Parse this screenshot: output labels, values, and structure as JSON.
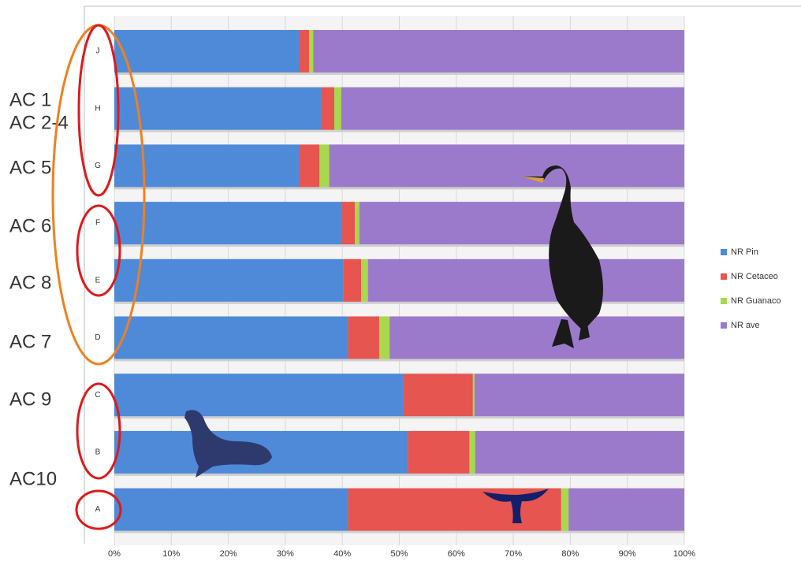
{
  "chart_data": {
    "type": "stacked_barh",
    "categories": [
      "J",
      "H",
      "G",
      "F",
      "E",
      "D",
      "C",
      "B",
      "A"
    ],
    "series": [
      {
        "name": "NR Pin",
        "color": "#4f8ad8",
        "values": [
          32.5,
          36.3,
          32.5,
          39.9,
          40.2,
          41.0,
          50.7,
          51.5,
          41.0
        ]
      },
      {
        "name": "NR Cetaceo",
        "color": "#e65550",
        "values": [
          1.7,
          2.3,
          3.5,
          2.3,
          3.1,
          5.5,
          12.2,
          10.8,
          37.4
        ]
      },
      {
        "name": "NR Guanaco",
        "color": "#a8d84c",
        "values": [
          0.7,
          1.2,
          1.7,
          0.8,
          1.2,
          1.8,
          0.3,
          1.0,
          1.3
        ]
      },
      {
        "name": "NR ave",
        "color": "#9c7acb",
        "values": [
          65.1,
          60.2,
          62.3,
          57.0,
          55.5,
          51.7,
          36.8,
          36.7,
          20.3
        ]
      }
    ],
    "xlim": [
      0,
      100
    ],
    "xticks": [
      {
        "value": 0,
        "label": "0%"
      },
      {
        "value": 10,
        "label": "10%"
      },
      {
        "value": 20,
        "label": "20%"
      },
      {
        "value": 30,
        "label": "30%"
      },
      {
        "value": 40,
        "label": "40%"
      },
      {
        "value": 50,
        "label": "50%"
      },
      {
        "value": 60,
        "label": "60%"
      },
      {
        "value": 70,
        "label": "70%"
      },
      {
        "value": 80,
        "label": "80%"
      },
      {
        "value": 90,
        "label": "90%"
      },
      {
        "value": 100,
        "label": "100%"
      }
    ],
    "grid": true,
    "legend": "right",
    "annotations": [
      "AC 1",
      "AC 2-4",
      "AC 5",
      "AC 6",
      "AC 8",
      "AC 7",
      "AC 9",
      "AC10"
    ]
  }
}
